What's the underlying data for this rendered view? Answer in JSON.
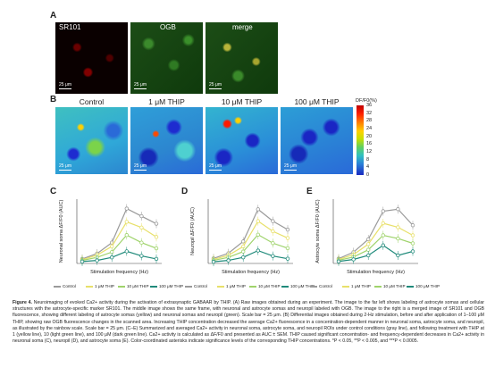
{
  "panelA": {
    "letter": "A",
    "titles": [
      "SR101",
      "OGB",
      "merge"
    ],
    "scalebar": "25 μm"
  },
  "panelB": {
    "letter": "B",
    "titles": [
      "Control",
      "1 μM THIP",
      "10 μM THIP",
      "100 μM THIP"
    ],
    "scalebar": "25 μm",
    "colorbar_title": "DF/F0(%)",
    "colorbar_ticks": [
      "36",
      "32",
      "28",
      "24",
      "20",
      "16",
      "12",
      "8",
      "4",
      "0"
    ]
  },
  "chart_data": [
    {
      "type": "line",
      "panel": "C",
      "ylabel": "Neuronal soma ΔF/F0 (AUC)",
      "xlabel": "Stimulation frequency (Hz)",
      "x": [
        0.5,
        1,
        2,
        5,
        10,
        20
      ],
      "series": [
        {
          "name": "Control",
          "values": [
            12,
            26,
            55,
            145,
            125,
            105
          ]
        },
        {
          "name": "1 μM THIP",
          "values": [
            10,
            22,
            45,
            110,
            95,
            70
          ]
        },
        {
          "name": "10 μM THIP",
          "values": [
            8,
            16,
            30,
            75,
            55,
            40
          ]
        },
        {
          "name": "100 μM THIP",
          "values": [
            5,
            8,
            16,
            32,
            20,
            12
          ]
        }
      ],
      "ylim": [
        0,
        170
      ]
    },
    {
      "type": "line",
      "panel": "D",
      "ylabel": "Neuropil ΔF/F0 (AUC)",
      "xlabel": "Stimulation frequency (Hz)",
      "x": [
        0.5,
        1,
        2,
        5,
        10,
        20
      ],
      "series": [
        {
          "name": "Control",
          "values": [
            15,
            30,
            65,
            160,
            125,
            100
          ]
        },
        {
          "name": "1 μM THIP",
          "values": [
            12,
            24,
            50,
            125,
            95,
            75
          ]
        },
        {
          "name": "10 μM THIP",
          "values": [
            9,
            18,
            35,
            85,
            60,
            45
          ]
        },
        {
          "name": "100 μM THIP",
          "values": [
            5,
            9,
            18,
            38,
            22,
            14
          ]
        }
      ],
      "ylim": [
        0,
        190
      ]
    },
    {
      "type": "line",
      "panel": "E",
      "ylabel": "Astrocyte soma ΔF/F0 (AUC)",
      "xlabel": "Stimulation frequency (Hz)",
      "x": [
        0.5,
        1,
        2,
        5,
        10,
        20
      ],
      "series": [
        {
          "name": "Control",
          "values": [
            12,
            28,
            60,
            130,
            135,
            95
          ]
        },
        {
          "name": "1 μM THIP",
          "values": [
            10,
            22,
            48,
            100,
            90,
            70
          ]
        },
        {
          "name": "10 μM THIP",
          "values": [
            8,
            16,
            34,
            70,
            62,
            50
          ]
        },
        {
          "name": "100 μM THIP",
          "values": [
            5,
            10,
            20,
            45,
            20,
            30
          ]
        }
      ],
      "ylim": [
        0,
        160
      ]
    }
  ],
  "legend": [
    "Control",
    "1 μM THIP",
    "10 μM THIP",
    "100 μM THIP"
  ],
  "caption": {
    "label": "Figure 4.",
    "text": "Neuroimaging of evoked Ca2+ activity during the activation of extrasynaptic GABAAR by THIP. (A) Raw images obtained during an experiment. The image to the far left shows labeling of astrocyte somas and cellular structures with the astrocyte-specific marker SR101. The middle image shows the same frame, with neuronal and astrocyte somas and neuropil labeled with OGB. The image to the right is a merged image of SR101 and OGB fluorescence, showing different labeling of astrocyte somas (yellow) and neuronal somas and neuropil (green). Scale bar = 25 μm. (B) Differential images obtained during 2-Hz stimulation, before and after application of 1–100 μM THIP, showing raw OGB fluorescence changes in the scanned area. Increasing THIP concentration decreased the average Ca2+ fluorescence in a concentration-dependent manner in neuronal soma, astrocyte soma, and neuropil, as illustrated by the rainbow scale. Scale bar = 25 μm. (C–E) Summarized and averaged Ca2+ activity in neuronal soma, astrocyte soma, and neuropil ROIs under control conditions (gray line), and following treatment with THIP at 1 (yellow line), 10 (light green line), and 100 μM (dark green line). Ca2+ activity is calculated as ΔF/F0 and presented as AUC ± SEM. THIP caused significant concentration- and frequency-dependent decreases in Ca2+ activity in neuronal soma (C), neuropil (D), and astrocyte soma (E). Color-coordinated asterisks indicate significance levels of the corresponding THIP concentrations. *P < 0.05, **P < 0.005, and ***P < 0.0005."
  },
  "colors": {
    "control": "#9a9a9a",
    "thip1": "#e8e06a",
    "thip10": "#9fd36b",
    "thip100": "#1f8a7a"
  }
}
